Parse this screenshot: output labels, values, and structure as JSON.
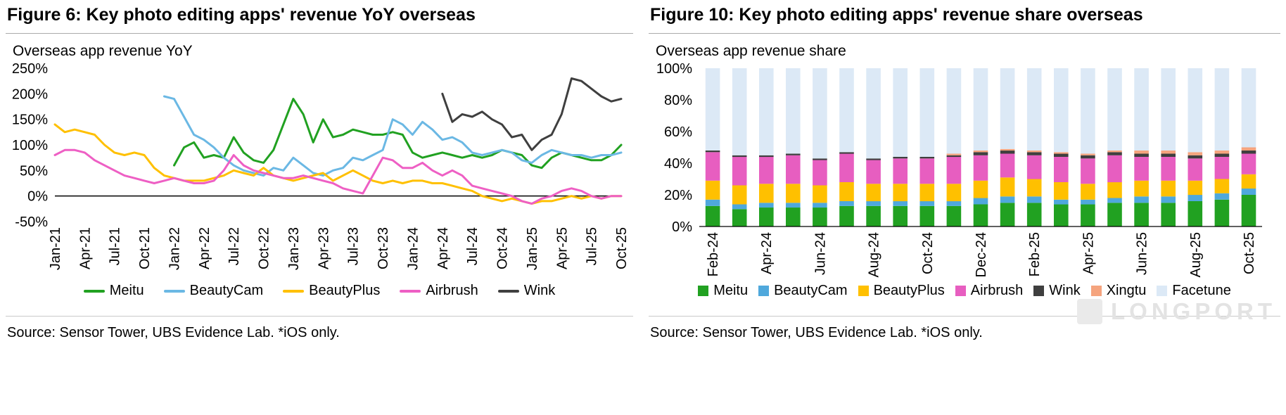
{
  "left_panel": {
    "figure_title": "Figure 6: Key photo editing apps' revenue YoY overseas",
    "source": "Source: Sensor Tower, UBS Evidence Lab. *iOS only."
  },
  "right_panel": {
    "figure_title": "Figure 10: Key photo editing apps' revenue share overseas",
    "source": "Source: Sensor Tower, UBS Evidence Lab. *iOS only."
  },
  "watermark": {
    "logo": "longport-logo",
    "text": "LONGPORT"
  },
  "chart_data": [
    {
      "type": "line",
      "title": "Overseas app revenue YoY",
      "y_format": "percent",
      "ylim": [
        -50,
        250
      ],
      "yticks": [
        -50,
        0,
        50,
        100,
        150,
        200,
        250
      ],
      "grid": false,
      "legend_position": "bottom",
      "x_tick_every": 3,
      "x": [
        "Jan-21",
        "Feb-21",
        "Mar-21",
        "Apr-21",
        "May-21",
        "Jun-21",
        "Jul-21",
        "Aug-21",
        "Sep-21",
        "Oct-21",
        "Nov-21",
        "Dec-21",
        "Jan-22",
        "Feb-22",
        "Mar-22",
        "Apr-22",
        "May-22",
        "Jun-22",
        "Jul-22",
        "Aug-22",
        "Sep-22",
        "Oct-22",
        "Nov-22",
        "Dec-22",
        "Jan-23",
        "Feb-23",
        "Mar-23",
        "Apr-23",
        "May-23",
        "Jun-23",
        "Jul-23",
        "Aug-23",
        "Sep-23",
        "Oct-23",
        "Nov-23",
        "Dec-23",
        "Jan-24",
        "Feb-24",
        "Mar-24",
        "Apr-24",
        "May-24",
        "Jun-24",
        "Jul-24",
        "Aug-24",
        "Sep-24",
        "Oct-24",
        "Nov-24",
        "Dec-24",
        "Jan-25",
        "Feb-25",
        "Mar-25",
        "Apr-25",
        "May-25",
        "Jun-25",
        "Jul-25",
        "Aug-25",
        "Sep-25",
        "Oct-25"
      ],
      "series": [
        {
          "name": "Meitu",
          "color": "#21A121",
          "values": [
            null,
            null,
            null,
            null,
            null,
            null,
            null,
            null,
            null,
            null,
            null,
            null,
            60,
            95,
            105,
            75,
            80,
            75,
            115,
            85,
            70,
            65,
            90,
            140,
            190,
            160,
            105,
            150,
            115,
            120,
            130,
            125,
            120,
            120,
            125,
            120,
            85,
            75,
            80,
            85,
            80,
            75,
            80,
            75,
            80,
            90,
            85,
            80,
            60,
            55,
            75,
            85,
            80,
            75,
            70,
            70,
            80,
            100
          ]
        },
        {
          "name": "BeautyCam",
          "color": "#6BB8E4",
          "values": [
            null,
            null,
            null,
            null,
            null,
            null,
            null,
            null,
            null,
            null,
            null,
            195,
            190,
            155,
            120,
            110,
            95,
            75,
            60,
            50,
            45,
            40,
            55,
            50,
            75,
            60,
            45,
            40,
            50,
            55,
            75,
            70,
            80,
            90,
            150,
            140,
            120,
            145,
            130,
            110,
            115,
            105,
            85,
            80,
            85,
            90,
            85,
            70,
            65,
            80,
            90,
            85,
            80,
            80,
            75,
            80,
            80,
            85
          ]
        },
        {
          "name": "BeautyPlus",
          "color": "#FFC000",
          "values": [
            140,
            125,
            130,
            125,
            120,
            100,
            85,
            80,
            85,
            80,
            55,
            40,
            35,
            30,
            30,
            30,
            35,
            40,
            50,
            45,
            40,
            55,
            40,
            35,
            30,
            35,
            40,
            45,
            30,
            40,
            50,
            40,
            30,
            25,
            30,
            25,
            30,
            30,
            25,
            25,
            20,
            15,
            10,
            0,
            -5,
            -10,
            -5,
            -10,
            -15,
            -10,
            -10,
            -5,
            0,
            -5,
            0,
            -5,
            0,
            0
          ]
        },
        {
          "name": "Airbrush",
          "color": "#EE5FC4",
          "values": [
            80,
            90,
            90,
            85,
            70,
            60,
            50,
            40,
            35,
            30,
            25,
            30,
            35,
            30,
            25,
            25,
            30,
            50,
            80,
            60,
            50,
            45,
            40,
            35,
            35,
            40,
            35,
            30,
            25,
            15,
            10,
            5,
            40,
            75,
            70,
            55,
            55,
            65,
            50,
            40,
            50,
            40,
            20,
            15,
            10,
            5,
            0,
            -10,
            -15,
            -5,
            0,
            10,
            15,
            10,
            0,
            -5,
            0,
            0
          ]
        },
        {
          "name": "Wink",
          "color": "#3F3F3F",
          "values": [
            null,
            null,
            null,
            null,
            null,
            null,
            null,
            null,
            null,
            null,
            null,
            null,
            null,
            null,
            null,
            null,
            null,
            null,
            null,
            null,
            null,
            null,
            null,
            null,
            null,
            null,
            null,
            null,
            null,
            null,
            null,
            null,
            null,
            null,
            null,
            null,
            null,
            null,
            null,
            200,
            145,
            160,
            155,
            165,
            150,
            140,
            115,
            120,
            90,
            110,
            120,
            160,
            230,
            225,
            210,
            195,
            185,
            190
          ]
        }
      ]
    },
    {
      "type": "bar",
      "stacked": true,
      "title": "Overseas app revenue share",
      "y_format": "percent",
      "ylim": [
        0,
        100
      ],
      "yticks": [
        0,
        20,
        40,
        60,
        80,
        100
      ],
      "grid": false,
      "legend_position": "bottom",
      "x_tick_every": 2,
      "categories": [
        "Feb-24",
        "Mar-24",
        "Apr-24",
        "May-24",
        "Jun-24",
        "Jul-24",
        "Aug-24",
        "Sep-24",
        "Oct-24",
        "Nov-24",
        "Dec-24",
        "Jan-25",
        "Feb-25",
        "Mar-25",
        "Apr-25",
        "May-25",
        "Jun-25",
        "Jul-25",
        "Aug-25",
        "Sep-25",
        "Oct-25"
      ],
      "series": [
        {
          "name": "Meitu",
          "color": "#21A121",
          "values": [
            13,
            11,
            12,
            12,
            12,
            13,
            13,
            13,
            13,
            13,
            14,
            15,
            15,
            14,
            14,
            15,
            15,
            15,
            16,
            17,
            20
          ]
        },
        {
          "name": "BeautyCam",
          "color": "#4FA8DC",
          "values": [
            4,
            3,
            3,
            3,
            3,
            3,
            3,
            3,
            3,
            3,
            4,
            4,
            4,
            3,
            3,
            3,
            4,
            4,
            4,
            4,
            4
          ]
        },
        {
          "name": "BeautyPlus",
          "color": "#FFC000",
          "values": [
            12,
            12,
            12,
            12,
            11,
            12,
            11,
            11,
            11,
            11,
            11,
            12,
            11,
            11,
            10,
            10,
            10,
            10,
            9,
            9,
            9
          ]
        },
        {
          "name": "Airbrush",
          "color": "#E75EC0",
          "values": [
            18,
            18,
            17,
            18,
            16,
            18,
            15,
            16,
            16,
            17,
            16,
            15,
            15,
            16,
            16,
            17,
            15,
            15,
            14,
            14,
            13
          ]
        },
        {
          "name": "Wink",
          "color": "#3F3F3F",
          "values": [
            1,
            1,
            1,
            1,
            1,
            1,
            1,
            1,
            1,
            1,
            2,
            2,
            2,
            2,
            2,
            2,
            2,
            2,
            2,
            2,
            2
          ]
        },
        {
          "name": "Xingtu",
          "color": "#F5A47E",
          "values": [
            0,
            0,
            0,
            0,
            0,
            0,
            0,
            0,
            0,
            1,
            1,
            1,
            1,
            1,
            1,
            1,
            2,
            2,
            2,
            2,
            2
          ]
        },
        {
          "name": "Facetune",
          "color": "#DCE9F6",
          "values": [
            52,
            55,
            55,
            54,
            57,
            53,
            57,
            56,
            56,
            54,
            52,
            51,
            52,
            53,
            54,
            52,
            52,
            52,
            53,
            52,
            50
          ]
        }
      ]
    }
  ]
}
